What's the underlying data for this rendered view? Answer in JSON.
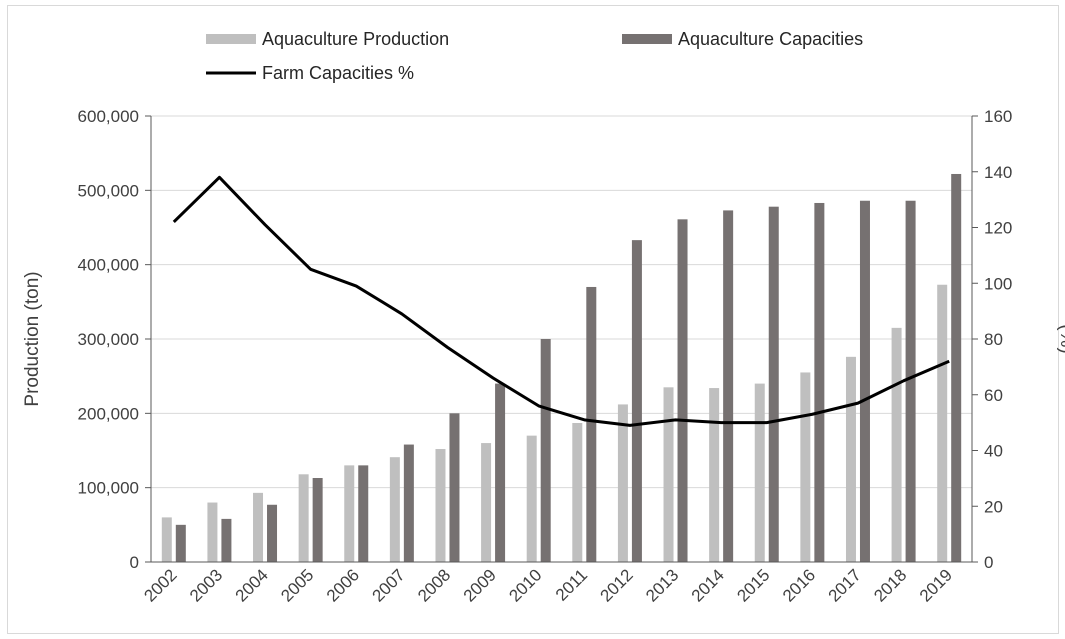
{
  "chart_data": {
    "type": "bar",
    "categories": [
      "2002",
      "2003",
      "2004",
      "2005",
      "2006",
      "2007",
      "2008",
      "2009",
      "2010",
      "2011",
      "2012",
      "2013",
      "2014",
      "2015",
      "2016",
      "2017",
      "2018",
      "2019"
    ],
    "series": [
      {
        "name": "Aquaculture Production",
        "kind": "bar",
        "axis": "left",
        "color": "#bfbfbf",
        "values": [
          60000,
          80000,
          93000,
          118000,
          130000,
          141000,
          152000,
          160000,
          170000,
          187000,
          212000,
          235000,
          234000,
          240000,
          255000,
          276000,
          315000,
          373000
        ]
      },
      {
        "name": "Aquaculture Capacities",
        "kind": "bar",
        "axis": "left",
        "color": "#767171",
        "values": [
          50000,
          58000,
          77000,
          113000,
          130000,
          158000,
          200000,
          240000,
          300000,
          370000,
          433000,
          461000,
          473000,
          478000,
          483000,
          486000,
          486000,
          522000
        ]
      },
      {
        "name": "Farm Capacities %",
        "kind": "line",
        "axis": "right",
        "color": "#000000",
        "values": [
          122,
          138,
          121,
          105,
          99,
          89,
          77,
          66,
          56,
          51,
          49,
          51,
          50,
          50,
          53,
          57,
          65,
          72
        ]
      }
    ],
    "title": "",
    "xlabel": "",
    "ylabel": "Production (ton)",
    "y2label": "(%)",
    "ylim": [
      0,
      600000
    ],
    "y2lim": [
      0,
      160
    ],
    "yticks": [
      "0",
      "100,000",
      "200,000",
      "300,000",
      "400,000",
      "500,000",
      "600,000"
    ],
    "y2ticks": [
      "0",
      "20",
      "40",
      "60",
      "80",
      "100",
      "120",
      "140",
      "160"
    ],
    "grid": true,
    "legend": "top"
  }
}
